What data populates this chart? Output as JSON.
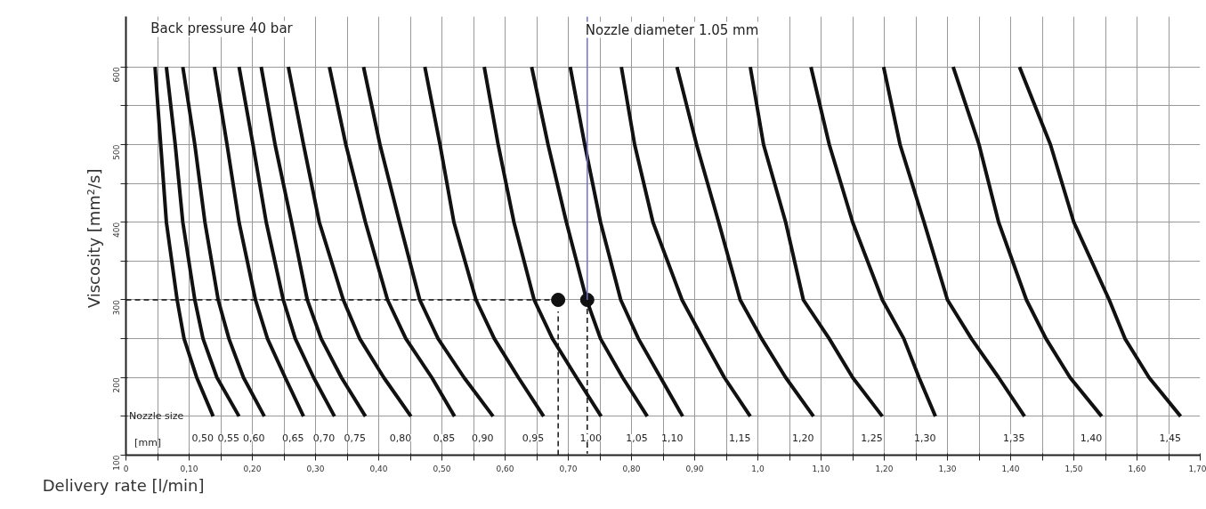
{
  "chart_data": {
    "type": "line",
    "title": "Back pressure 40 bar",
    "xlabel": "Delivery rate  [l/min]",
    "ylabel": "Viscosity  [mm²/s]",
    "xlim": [
      0,
      1.7
    ],
    "ylim": [
      100,
      665
    ],
    "xticks": [
      0,
      {
        "value": 0.05,
        "label": null
      },
      {
        "value": 0.1,
        "label": "0,10"
      },
      {
        "value": 0.15,
        "label": null
      },
      {
        "value": 0.2,
        "label": "0,20"
      },
      {
        "value": 0.25,
        "label": null
      },
      {
        "value": 0.3,
        "label": "0,30"
      },
      {
        "value": 0.35,
        "label": null
      },
      {
        "value": 0.4,
        "label": "0,40"
      },
      {
        "value": 0.45,
        "label": null
      },
      {
        "value": 0.5,
        "label": "0,50"
      },
      {
        "value": 0.55,
        "label": null
      },
      {
        "value": 0.6,
        "label": "0,60"
      },
      {
        "value": 0.65,
        "label": null
      },
      {
        "value": 0.7,
        "label": "0,70"
      },
      {
        "value": 0.75,
        "label": null
      },
      {
        "value": 0.8,
        "label": "0,80"
      },
      {
        "value": 0.85,
        "label": null
      },
      {
        "value": 0.9,
        "label": "0,90"
      },
      {
        "value": 0.95,
        "label": null
      },
      {
        "value": 1.0,
        "label": "1,0"
      },
      {
        "value": 1.05,
        "label": null
      },
      {
        "value": 1.1,
        "label": "1,10"
      },
      {
        "value": 1.15,
        "label": null
      },
      {
        "value": 1.2,
        "label": "1,20"
      },
      {
        "value": 1.25,
        "label": null
      },
      {
        "value": 1.3,
        "label": "1,30"
      },
      {
        "value": 1.35,
        "label": null
      },
      {
        "value": 1.4,
        "label": "1,40"
      },
      {
        "value": 1.45,
        "label": null
      },
      {
        "value": 1.5,
        "label": "1,50"
      },
      {
        "value": 1.55,
        "label": null
      },
      {
        "value": 1.6,
        "label": "1,60"
      },
      {
        "value": 1.65,
        "label": null
      },
      {
        "value": 1.7,
        "label": "1,70"
      }
    ],
    "yticks": [
      100,
      {
        "value": 150,
        "label": null
      },
      200,
      {
        "value": 250,
        "label": null
      },
      300,
      {
        "value": 350,
        "label": null
      },
      400,
      {
        "value": 450,
        "label": null
      },
      500,
      {
        "value": 550,
        "label": null
      },
      600
    ],
    "grid": true,
    "line_style": "solid",
    "marker": "none",
    "series": [
      {
        "color": "#111111",
        "x": [
          0.046,
          0.055,
          0.064,
          0.081,
          0.092,
          0.112,
          0.138
        ],
        "values": [
          600,
          500,
          400,
          300,
          250,
          200,
          150
        ]
      },
      {
        "color": "#111111",
        "x": [
          0.064,
          0.078,
          0.09,
          0.109,
          0.122,
          0.144,
          0.179
        ],
        "values": [
          600,
          500,
          400,
          300,
          250,
          200,
          150
        ]
      },
      {
        "color": "#111111",
        "x": [
          0.09,
          0.109,
          0.125,
          0.146,
          0.163,
          0.186,
          0.219
        ],
        "values": [
          600,
          500,
          400,
          300,
          250,
          200,
          150
        ]
      },
      {
        "color": "#111111",
        "x": [
          0.14,
          0.16,
          0.179,
          0.205,
          0.224,
          0.252,
          0.281
        ],
        "values": [
          600,
          500,
          400,
          300,
          250,
          200,
          150
        ]
      },
      {
        "color": "#111111",
        "x": [
          0.179,
          0.201,
          0.222,
          0.249,
          0.268,
          0.297,
          0.33
        ],
        "values": [
          600,
          500,
          400,
          300,
          250,
          200,
          150
        ]
      },
      {
        "color": "#111111",
        "x": [
          0.214,
          0.236,
          0.262,
          0.287,
          0.309,
          0.341,
          0.379
        ],
        "values": [
          600,
          500,
          400,
          300,
          250,
          200,
          150
        ]
      },
      {
        "color": "#111111",
        "x": [
          0.257,
          0.281,
          0.306,
          0.344,
          0.37,
          0.408,
          0.451
        ],
        "values": [
          600,
          500,
          400,
          300,
          250,
          200,
          150
        ]
      },
      {
        "color": "#111111",
        "x": [
          0.322,
          0.348,
          0.379,
          0.414,
          0.443,
          0.484,
          0.52
        ],
        "values": [
          600,
          500,
          400,
          300,
          250,
          200,
          150
        ]
      },
      {
        "color": "#111111",
        "x": [
          0.376,
          0.402,
          0.433,
          0.465,
          0.494,
          0.535,
          0.581
        ],
        "values": [
          600,
          500,
          400,
          300,
          250,
          200,
          150
        ]
      },
      {
        "color": "#111111",
        "x": [
          0.473,
          0.497,
          0.519,
          0.554,
          0.583,
          0.621,
          0.661
        ],
        "values": [
          600,
          500,
          400,
          300,
          250,
          200,
          150
        ]
      },
      {
        "color": "#111111",
        "x": [
          0.567,
          0.589,
          0.614,
          0.646,
          0.675,
          0.713,
          0.752
        ],
        "values": [
          600,
          500,
          400,
          300,
          250,
          200,
          150
        ]
      },
      {
        "color": "#111111",
        "x": [
          0.642,
          0.668,
          0.697,
          0.729,
          0.751,
          0.786,
          0.825
        ],
        "values": [
          600,
          500,
          400,
          300,
          250,
          200,
          150
        ]
      },
      {
        "color": "#111111",
        "x": [
          0.703,
          0.726,
          0.751,
          0.783,
          0.811,
          0.846,
          0.881
        ],
        "values": [
          600,
          500,
          400,
          300,
          250,
          200,
          150
        ]
      },
      {
        "color": "#111111",
        "x": [
          0.784,
          0.805,
          0.834,
          0.88,
          0.913,
          0.947,
          0.988
        ],
        "values": [
          600,
          500,
          400,
          300,
          250,
          200,
          150
        ]
      },
      {
        "color": "#111111",
        "x": [
          0.872,
          0.903,
          0.938,
          0.972,
          1.006,
          1.044,
          1.088
        ],
        "values": [
          600,
          500,
          400,
          300,
          250,
          200,
          150
        ]
      },
      {
        "color": "#111111",
        "x": [
          0.988,
          1.009,
          1.044,
          1.072,
          1.113,
          1.15,
          1.197
        ],
        "values": [
          600,
          500,
          400,
          300,
          250,
          200,
          150
        ]
      },
      {
        "color": "#111111",
        "x": [
          1.084,
          1.113,
          1.15,
          1.197,
          1.231,
          1.255,
          1.281
        ],
        "values": [
          600,
          500,
          400,
          300,
          250,
          200,
          150
        ]
      },
      {
        "color": "#111111",
        "x": [
          1.199,
          1.225,
          1.263,
          1.3,
          1.338,
          1.381,
          1.422
        ],
        "values": [
          600,
          500,
          400,
          300,
          250,
          200,
          150
        ]
      },
      {
        "color": "#111111",
        "x": [
          1.309,
          1.35,
          1.381,
          1.425,
          1.456,
          1.494,
          1.544
        ],
        "values": [
          600,
          500,
          400,
          300,
          250,
          200,
          150
        ]
      },
      {
        "color": "#111111",
        "x": [
          1.414,
          1.463,
          1.5,
          1.556,
          1.581,
          1.619,
          1.669
        ],
        "values": [
          600,
          500,
          400,
          300,
          250,
          200,
          150
        ]
      },
      {
        "color": "#111111",
        "line_style": "dashed",
        "x": [
          0,
          0.684
        ],
        "values": [
          300,
          300
        ]
      },
      {
        "color": "#111111",
        "line_style": "dashed",
        "x": [
          0.684,
          0.684
        ],
        "values": [
          100,
          285
        ]
      },
      {
        "color": "#111111",
        "line_style": "dashed",
        "x": [
          0.73,
          0.73
        ],
        "values": [
          300,
          102
        ]
      },
      {
        "type": "scatter",
        "marker": "circle",
        "color": "#111111",
        "x": [
          0.684,
          0.73
        ],
        "values": [
          300,
          300
        ]
      },
      {
        "color": "#7070c8",
        "x": [
          0.73,
          0.73
        ],
        "values": [
          300,
          665
        ]
      }
    ],
    "annotations": [
      {
        "text": "Nozzle diameter 1.05 mm",
        "x": 0.73,
        "y": 665
      },
      "Nozzle size",
      "[mm]",
      {
        "text": "0,50",
        "x": 0.138,
        "y": 150
      },
      {
        "text": "0,55",
        "x": 0.179,
        "y": 150
      },
      {
        "text": "0,60",
        "x": 0.219,
        "y": 150
      },
      {
        "text": "0,65",
        "x": 0.281,
        "y": 150
      },
      {
        "text": "0,70",
        "x": 0.33,
        "y": 150
      },
      {
        "text": "0,75",
        "x": 0.379,
        "y": 150
      },
      {
        "text": "0,80",
        "x": 0.451,
        "y": 150
      },
      {
        "text": "0,85",
        "x": 0.52,
        "y": 150
      },
      {
        "text": "0,90",
        "x": 0.581,
        "y": 150
      },
      {
        "text": "0,95",
        "x": 0.661,
        "y": 150
      },
      {
        "text": "1,00",
        "x": 0.752,
        "y": 150
      },
      {
        "text": "1,05",
        "x": 0.825,
        "y": 150
      },
      {
        "text": "1,10",
        "x": 0.881,
        "y": 150
      },
      {
        "text": "1,15",
        "x": 0.988,
        "y": 150
      },
      {
        "text": "1,20",
        "x": 1.088,
        "y": 150
      },
      {
        "text": "1,25",
        "x": 1.197,
        "y": 150
      },
      {
        "text": "1,30",
        "x": 1.281,
        "y": 150
      },
      {
        "text": "1,35",
        "x": 1.422,
        "y": 150
      },
      {
        "text": "1,40",
        "x": 1.544,
        "y": 150
      },
      {
        "text": "1,45",
        "x": 1.669,
        "y": 150
      }
    ]
  }
}
